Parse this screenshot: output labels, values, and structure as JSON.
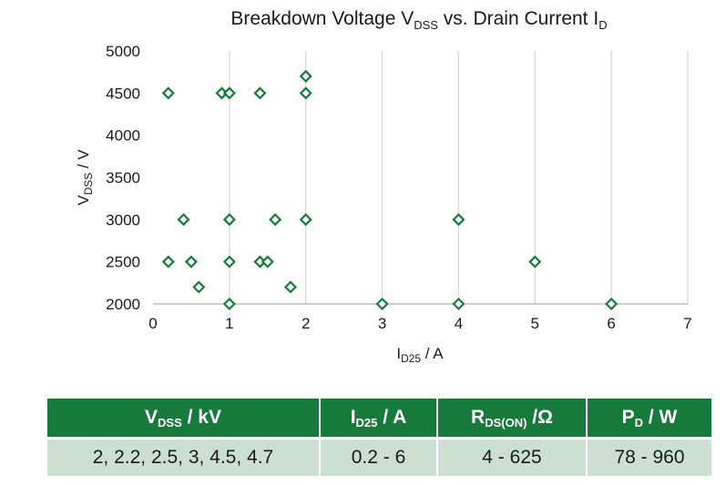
{
  "chart_data": {
    "type": "scatter",
    "title": {
      "main": "Breakdown Voltage V",
      "main_sub": "DSS",
      "mid": " vs. Drain Current I",
      "end_sub": "D"
    },
    "xlabel": {
      "main": "I",
      "sub": "D25",
      "rest": " / A"
    },
    "ylabel": {
      "main": "V",
      "sub": "DSS",
      "rest": " / V"
    },
    "xlim": [
      0,
      7
    ],
    "ylim": [
      2000,
      5000
    ],
    "x_ticks": [
      0,
      1,
      2,
      3,
      4,
      5,
      6,
      7
    ],
    "y_ticks": [
      2000,
      2500,
      3000,
      3500,
      4000,
      4500,
      5000
    ],
    "grid": "vertical",
    "marker": "open-diamond",
    "marker_color": "#157a3a",
    "points": [
      {
        "x": 0.2,
        "y": 4500
      },
      {
        "x": 0.9,
        "y": 4500
      },
      {
        "x": 1.0,
        "y": 4500
      },
      {
        "x": 1.4,
        "y": 4500
      },
      {
        "x": 2.0,
        "y": 4500
      },
      {
        "x": 2.0,
        "y": 4700
      },
      {
        "x": 0.4,
        "y": 3000
      },
      {
        "x": 1.0,
        "y": 3000
      },
      {
        "x": 1.6,
        "y": 3000
      },
      {
        "x": 2.0,
        "y": 3000
      },
      {
        "x": 4.0,
        "y": 3000
      },
      {
        "x": 0.2,
        "y": 2500
      },
      {
        "x": 0.5,
        "y": 2500
      },
      {
        "x": 1.0,
        "y": 2500
      },
      {
        "x": 1.4,
        "y": 2500
      },
      {
        "x": 1.5,
        "y": 2500
      },
      {
        "x": 5.0,
        "y": 2500
      },
      {
        "x": 0.6,
        "y": 2200
      },
      {
        "x": 1.8,
        "y": 2200
      },
      {
        "x": 1.0,
        "y": 2000
      },
      {
        "x": 3.0,
        "y": 2000
      },
      {
        "x": 4.0,
        "y": 2000
      },
      {
        "x": 6.0,
        "y": 2000
      }
    ]
  },
  "table": {
    "header_color": "#157a3a",
    "row_color": "#cbdfd2",
    "headers": [
      {
        "main": "V",
        "sub": "DSS",
        "rest": " / kV"
      },
      {
        "main": "I",
        "sub": "D25",
        "rest": " / A"
      },
      {
        "main": "R",
        "sub": "DS(ON)",
        "rest": " /Ω"
      },
      {
        "main": "P",
        "sub": "D",
        "rest": " / W"
      }
    ],
    "row": [
      "2, 2.2, 2.5, 3, 4.5, 4.7",
      "0.2 - 6",
      "4 - 625",
      "78 - 960"
    ]
  }
}
